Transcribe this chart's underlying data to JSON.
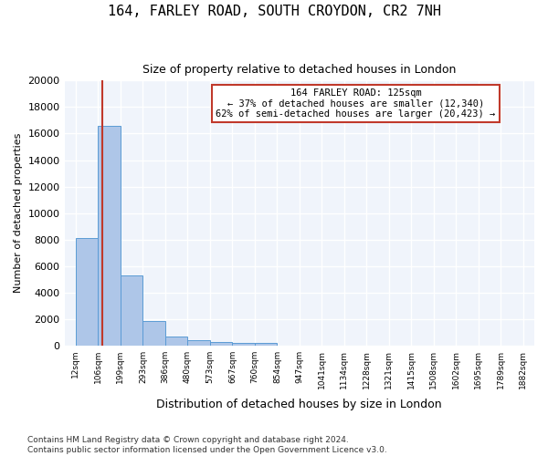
{
  "title": "164, FARLEY ROAD, SOUTH CROYDON, CR2 7NH",
  "subtitle": "Size of property relative to detached houses in London",
  "xlabel": "Distribution of detached houses by size in London",
  "ylabel": "Number of detached properties",
  "bar_color": "#aec6e8",
  "bar_edge_color": "#5b9bd5",
  "highlight_line_color": "#c0392b",
  "annotation_box_color": "#c0392b",
  "background_color": "#f0f4fb",
  "grid_color": "#ffffff",
  "footer_text": "Contains HM Land Registry data © Crown copyright and database right 2024.\nContains public sector information licensed under the Open Government Licence v3.0.",
  "annotation_text": "164 FARLEY ROAD: 125sqm\n← 37% of detached houses are smaller (12,340)\n62% of semi-detached houses are larger (20,423) →",
  "property_size_sqm": 125,
  "bin_edges": [
    12,
    106,
    199,
    293,
    386,
    480,
    573,
    667,
    760,
    854,
    947,
    1041,
    1134,
    1228,
    1321,
    1415,
    1508,
    1602,
    1695,
    1789,
    1882
  ],
  "bin_labels": [
    "12sqm",
    "106sqm",
    "199sqm",
    "293sqm",
    "386sqm",
    "480sqm",
    "573sqm",
    "667sqm",
    "760sqm",
    "854sqm",
    "947sqm",
    "1041sqm",
    "1134sqm",
    "1228sqm",
    "1321sqm",
    "1415sqm",
    "1508sqm",
    "1602sqm",
    "1695sqm",
    "1789sqm",
    "1882sqm"
  ],
  "bar_heights": [
    8100,
    16600,
    5300,
    1850,
    700,
    380,
    280,
    230,
    190,
    0,
    0,
    0,
    0,
    0,
    0,
    0,
    0,
    0,
    0,
    0
  ],
  "ylim": [
    0,
    20000
  ],
  "yticks": [
    0,
    2000,
    4000,
    6000,
    8000,
    10000,
    12000,
    14000,
    16000,
    18000,
    20000
  ]
}
